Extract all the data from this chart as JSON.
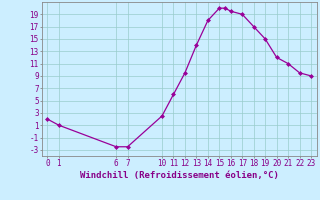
{
  "xlabel": "Windchill (Refroidissement éolien,°C)",
  "x": [
    0,
    1,
    6,
    7,
    10,
    11,
    12,
    13,
    14,
    15,
    15.5,
    16,
    17,
    18,
    19,
    20,
    21,
    22,
    23
  ],
  "y": [
    2,
    1,
    -2.5,
    -2.5,
    2.5,
    6,
    9.5,
    14,
    18,
    20,
    20,
    19.5,
    19,
    17,
    15,
    12,
    11,
    9.5,
    9
  ],
  "line_color": "#990099",
  "marker": "D",
  "marker_size": 2.0,
  "bg_color": "#cceeff",
  "grid_color": "#99cccc",
  "xlim": [
    -0.5,
    23.5
  ],
  "ylim": [
    -4.0,
    21.0
  ],
  "xticks": [
    0,
    1,
    6,
    7,
    10,
    11,
    12,
    13,
    14,
    15,
    16,
    17,
    18,
    19,
    20,
    21,
    22,
    23
  ],
  "yticks": [
    -3,
    -1,
    1,
    3,
    5,
    7,
    9,
    11,
    13,
    15,
    17,
    19
  ],
  "tick_label_color": "#880088",
  "tick_label_fontsize": 5.5,
  "xlabel_fontsize": 6.5,
  "spine_color": "#888888",
  "line_width": 0.9
}
